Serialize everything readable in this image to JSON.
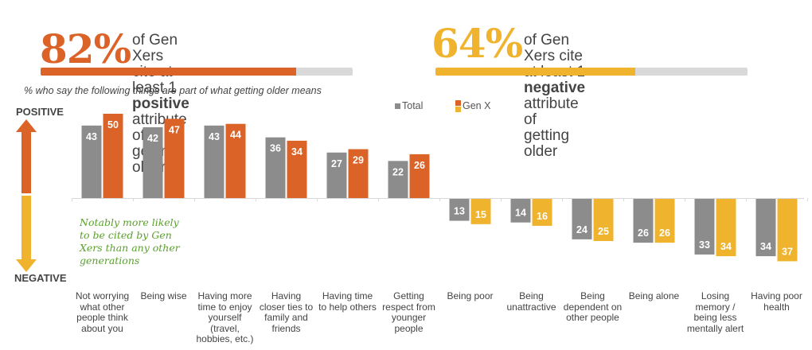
{
  "stats": {
    "positive": {
      "value_label": "82%",
      "text_pre": "of Gen Xers cite at least 1 ",
      "text_emph": "positive",
      "text_post": "attribute of getting older",
      "progress_percent": 82,
      "color": "#dc6328"
    },
    "negative": {
      "value_label": "64%",
      "text_pre": "of Gen Xers cite at least 1 ",
      "text_emph": "negative",
      "text_post": "attribute of getting older",
      "progress_percent": 64,
      "color": "#f0b32d"
    }
  },
  "subtitle": "% who say the following things are part of what getting older means",
  "axis": {
    "positive_label": "POSITIVE",
    "negative_label": "NEGATIVE"
  },
  "legend": {
    "total_label": "Total",
    "genx_label": "Gen X"
  },
  "note": "Notably more likely to be cited by Gen Xers than any other generations",
  "colors": {
    "total": "#8c8c8c",
    "genx_positive": "#dc6328",
    "genx_negative": "#f0b32d",
    "baseline": "#d9d9d9",
    "progress_track": "#d9d9d9"
  },
  "chart_data": {
    "type": "bar",
    "title": "% who say the following things are part of what getting older means",
    "xlabel": "",
    "ylabel": "",
    "ylim": [
      -40,
      50
    ],
    "grid": false,
    "legend_position": "top-right",
    "categories": [
      "Not worrying what other people think about you",
      "Being wise",
      "Having more time to enjoy yourself (travel, hobbies, etc.)",
      "Having closer ties to family and friends",
      "Having time to help others",
      "Getting respect from younger people",
      "Being poor",
      "Being unattractive",
      "Being dependent on other people",
      "Being alone",
      "Losing memory / being less mentally alert",
      "Having poor health"
    ],
    "category_lines": [
      [
        "Not worrying",
        "what other",
        "people think",
        "about you"
      ],
      [
        "Being wise"
      ],
      [
        "Having more",
        "time to enjoy",
        "yourself",
        "(travel,",
        "hobbies, etc.)"
      ],
      [
        "Having",
        "closer ties to",
        "family and",
        "friends"
      ],
      [
        "Having time",
        "to help others"
      ],
      [
        "Getting",
        "respect from",
        "younger",
        "people"
      ],
      [
        "Being poor"
      ],
      [
        "Being",
        "unattractive"
      ],
      [
        "Being",
        "dependent on",
        "other people"
      ],
      [
        "Being alone"
      ],
      [
        "Losing",
        "memory /",
        "being less",
        "mentally alert"
      ],
      [
        "Having poor",
        "health"
      ]
    ],
    "polarity": [
      "positive",
      "positive",
      "positive",
      "positive",
      "positive",
      "positive",
      "negative",
      "negative",
      "negative",
      "negative",
      "negative",
      "negative"
    ],
    "series": [
      {
        "name": "Total",
        "values": [
          43,
          42,
          43,
          36,
          27,
          22,
          13,
          14,
          24,
          26,
          33,
          34
        ]
      },
      {
        "name": "Gen X",
        "values": [
          50,
          47,
          44,
          34,
          29,
          26,
          15,
          16,
          25,
          26,
          34,
          37
        ]
      }
    ]
  }
}
